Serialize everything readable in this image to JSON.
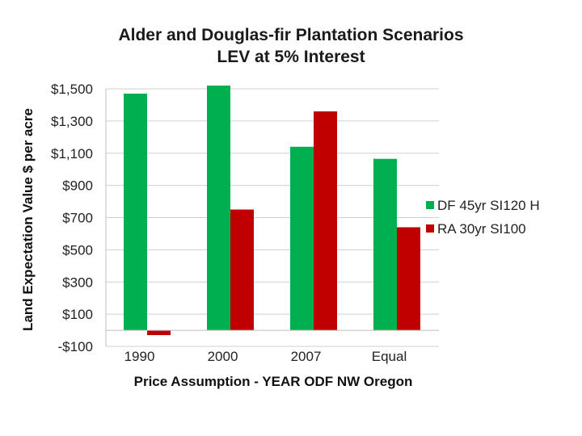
{
  "chart_data": {
    "type": "bar",
    "title": "Alder and Douglas-fir Plantation Scenarios",
    "subtitle": "LEV at 5% Interest",
    "xlabel": "Price Assumption - YEAR ODF NW Oregon",
    "ylabel": "Land Expectation Value $ per acre",
    "categories": [
      "1990",
      "2000",
      "2007",
      "Equal"
    ],
    "series": [
      {
        "name": "DF 45yr SI120 H",
        "color": "#00b050",
        "values": [
          1470,
          1520,
          1140,
          1065
        ]
      },
      {
        "name": "RA 30yr SI100",
        "color": "#c00000",
        "values": [
          -30,
          750,
          1360,
          640
        ]
      }
    ],
    "ylim": [
      -100,
      1500
    ],
    "yticks": [
      -100,
      100,
      300,
      500,
      700,
      900,
      1100,
      1300,
      1500
    ],
    "ytick_labels": [
      "-$100",
      "$100",
      "$300",
      "$500",
      "$700",
      "$900",
      "$1,100",
      "$1,300",
      "$1,500"
    ],
    "grid": true,
    "legend_position": "right"
  }
}
